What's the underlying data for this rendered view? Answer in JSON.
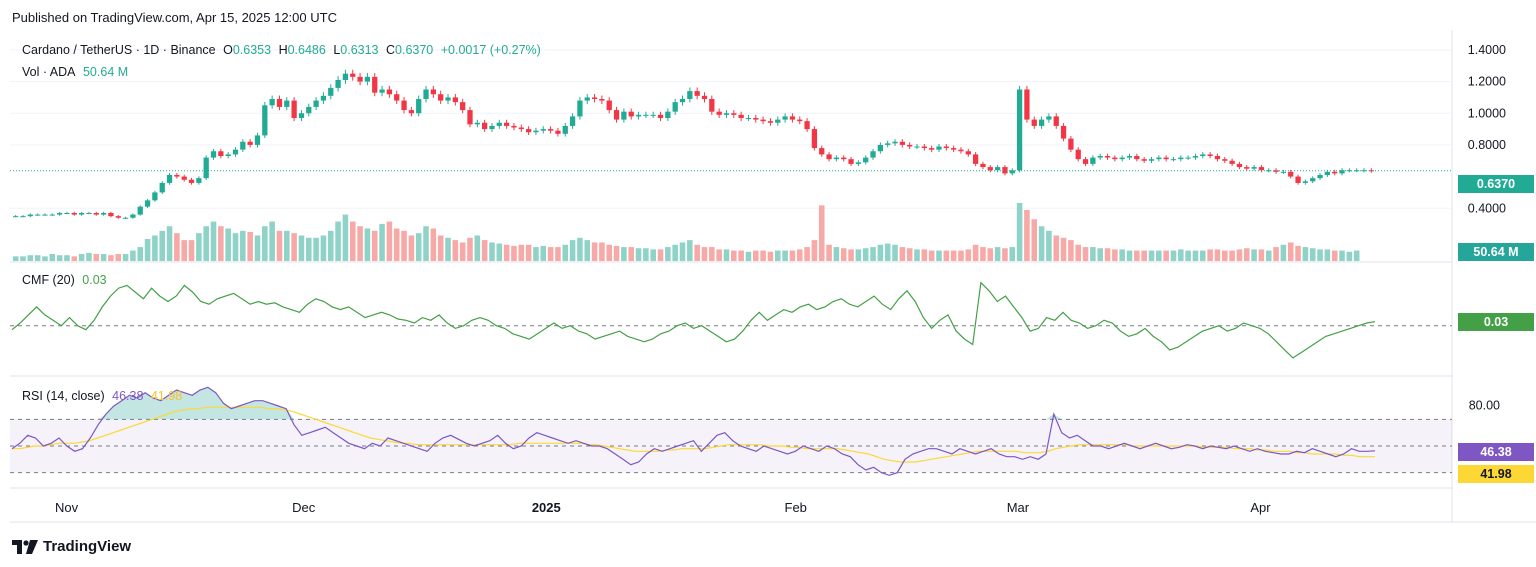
{
  "header": {
    "published": "Published on TradingView.com, Apr 15, 2025 12:00 UTC"
  },
  "footer": {
    "brand": "TradingView"
  },
  "colors": {
    "up": "#22ab94",
    "down": "#f23645",
    "up_vol": "#8fd3c8",
    "down_vol": "#f7a9a7",
    "cmf": "#43a047",
    "rsi": "#7e57c2",
    "rsi_ma": "#fdd835",
    "price_line": "#22ab94"
  },
  "chart_data": {
    "type": "candlestick",
    "symbol_line": {
      "title": "Cardano / TetherUS · 1D · Binance",
      "o_label": "O",
      "o": "0.6353",
      "h_label": "H",
      "h": "0.6486",
      "l_label": "L",
      "l": "0.6313",
      "c_label": "C",
      "c": "0.6370",
      "change": "+0.0017 (+0.27%)"
    },
    "volume_legend": {
      "label": "Vol · ADA",
      "value": "50.64 M"
    },
    "price_axis": {
      "ticks": [
        "1.4000",
        "1.2000",
        "1.0000",
        "0.8000",
        "0.4000"
      ],
      "range": [
        0.25,
        1.45
      ]
    },
    "last_price_label": "0.6370",
    "last_volume_label": "50.64 M",
    "time_axis": {
      "labels": [
        "Nov",
        "Dec",
        "2025",
        "Feb",
        "Mar",
        "Apr"
      ],
      "bold": "2025"
    },
    "close_series": [
      0.35,
      0.35,
      0.36,
      0.36,
      0.36,
      0.36,
      0.37,
      0.37,
      0.36,
      0.37,
      0.37,
      0.36,
      0.37,
      0.35,
      0.34,
      0.34,
      0.36,
      0.41,
      0.45,
      0.5,
      0.56,
      0.61,
      0.6,
      0.58,
      0.56,
      0.59,
      0.72,
      0.76,
      0.73,
      0.74,
      0.77,
      0.82,
      0.8,
      0.86,
      1.05,
      1.09,
      1.04,
      1.08,
      0.97,
      1.0,
      1.04,
      1.08,
      1.11,
      1.16,
      1.21,
      1.25,
      1.23,
      1.2,
      1.23,
      1.13,
      1.15,
      1.12,
      1.08,
      1.02,
      1.0,
      1.09,
      1.15,
      1.12,
      1.08,
      1.1,
      1.07,
      1.02,
      0.93,
      0.94,
      0.9,
      0.92,
      0.94,
      0.92,
      0.91,
      0.9,
      0.88,
      0.89,
      0.9,
      0.89,
      0.87,
      0.92,
      0.98,
      1.08,
      1.1,
      1.09,
      1.08,
      1.02,
      0.96,
      1.01,
      0.98,
      0.99,
      0.99,
      0.99,
      0.97,
      1.01,
      1.07,
      1.09,
      1.14,
      1.11,
      1.09,
      1.01,
      0.99,
      1.0,
      0.99,
      0.97,
      0.97,
      0.96,
      0.95,
      0.94,
      0.96,
      0.98,
      0.96,
      0.95,
      0.9,
      0.78,
      0.74,
      0.71,
      0.72,
      0.71,
      0.68,
      0.69,
      0.72,
      0.76,
      0.8,
      0.81,
      0.82,
      0.8,
      0.79,
      0.79,
      0.78,
      0.77,
      0.79,
      0.78,
      0.77,
      0.76,
      0.74,
      0.68,
      0.66,
      0.64,
      0.66,
      0.62,
      0.64,
      1.15,
      0.96,
      0.92,
      0.96,
      0.98,
      0.92,
      0.84,
      0.77,
      0.71,
      0.68,
      0.72,
      0.73,
      0.72,
      0.71,
      0.72,
      0.73,
      0.71,
      0.7,
      0.71,
      0.72,
      0.71,
      0.71,
      0.72,
      0.72,
      0.73,
      0.74,
      0.73,
      0.71,
      0.7,
      0.68,
      0.66,
      0.65,
      0.66,
      0.64,
      0.64,
      0.63,
      0.63,
      0.6,
      0.56,
      0.57,
      0.59,
      0.61,
      0.63,
      0.62,
      0.64,
      0.64,
      0.64,
      0.64,
      0.637
    ],
    "volume_series": [
      4,
      4,
      5,
      5,
      4,
      6,
      5,
      5,
      4,
      6,
      7,
      6,
      6,
      5,
      6,
      6,
      9,
      12,
      19,
      22,
      26,
      30,
      24,
      18,
      18,
      24,
      30,
      34,
      30,
      28,
      24,
      26,
      25,
      22,
      30,
      34,
      26,
      26,
      24,
      22,
      20,
      20,
      22,
      26,
      34,
      40,
      34,
      30,
      28,
      26,
      32,
      34,
      28,
      26,
      22,
      24,
      30,
      28,
      22,
      20,
      18,
      16,
      20,
      22,
      18,
      16,
      15,
      14,
      13,
      14,
      14,
      12,
      13,
      12,
      12,
      14,
      18,
      20,
      18,
      16,
      16,
      14,
      13,
      12,
      12,
      11,
      11,
      10,
      10,
      12,
      14,
      16,
      18,
      14,
      12,
      12,
      10,
      10,
      9,
      9,
      8,
      9,
      9,
      8,
      9,
      9,
      9,
      10,
      12,
      18,
      48,
      14,
      12,
      11,
      10,
      10,
      11,
      12,
      14,
      15,
      14,
      12,
      11,
      10,
      10,
      9,
      9,
      9,
      9,
      9,
      10,
      14,
      12,
      11,
      12,
      11,
      12,
      50,
      44,
      36,
      30,
      26,
      22,
      20,
      18,
      14,
      12,
      12,
      11,
      11,
      10,
      10,
      9,
      9,
      9,
      9,
      9,
      9,
      9,
      10,
      9,
      9,
      9,
      10,
      10,
      9,
      9,
      10,
      11,
      10,
      10,
      9,
      12,
      14,
      16,
      13,
      12,
      11,
      10,
      10,
      9,
      9,
      8,
      9
    ],
    "cmf": {
      "label": "CMF (20)",
      "value": "0.03",
      "label_box": "0.03",
      "series": [
        -0.03,
        0.02,
        0.08,
        0.14,
        0.08,
        0.04,
        0.0,
        0.06,
        0.0,
        -0.03,
        0.04,
        0.14,
        0.22,
        0.28,
        0.3,
        0.25,
        0.2,
        0.28,
        0.22,
        0.18,
        0.22,
        0.3,
        0.25,
        0.18,
        0.16,
        0.2,
        0.22,
        0.24,
        0.2,
        0.16,
        0.18,
        0.16,
        0.17,
        0.14,
        0.12,
        0.1,
        0.16,
        0.2,
        0.18,
        0.14,
        0.12,
        0.14,
        0.1,
        0.06,
        0.08,
        0.1,
        0.08,
        0.05,
        0.04,
        0.02,
        0.06,
        0.04,
        0.08,
        0.02,
        -0.02,
        0.0,
        0.04,
        0.06,
        0.04,
        0.0,
        -0.02,
        -0.06,
        -0.08,
        -0.1,
        -0.06,
        -0.02,
        0.02,
        -0.02,
        0.0,
        -0.04,
        -0.06,
        -0.1,
        -0.08,
        -0.06,
        -0.04,
        -0.08,
        -0.1,
        -0.12,
        -0.1,
        -0.06,
        -0.04,
        0.0,
        0.02,
        -0.02,
        0.0,
        -0.04,
        -0.08,
        -0.12,
        -0.1,
        -0.04,
        0.04,
        0.1,
        0.04,
        0.08,
        0.12,
        0.1,
        0.14,
        0.16,
        0.12,
        0.14,
        0.18,
        0.2,
        0.16,
        0.14,
        0.18,
        0.22,
        0.16,
        0.12,
        0.2,
        0.26,
        0.18,
        0.06,
        -0.02,
        0.04,
        0.08,
        -0.04,
        -0.1,
        -0.14,
        0.32,
        0.26,
        0.18,
        0.22,
        0.14,
        0.06,
        -0.04,
        -0.02,
        0.06,
        0.04,
        0.1,
        0.04,
        0.02,
        -0.02,
        0.0,
        0.04,
        0.02,
        -0.04,
        -0.08,
        -0.06,
        -0.02,
        -0.08,
        -0.12,
        -0.18,
        -0.16,
        -0.12,
        -0.08,
        -0.04,
        -0.02,
        0.0,
        -0.04,
        -0.02,
        0.02,
        0.0,
        -0.02,
        -0.06,
        -0.12,
        -0.18,
        -0.24,
        -0.2,
        -0.16,
        -0.12,
        -0.08,
        -0.06,
        -0.04,
        -0.02,
        0.0,
        0.02,
        0.03
      ]
    },
    "rsi": {
      "label": "RSI (14, close)",
      "value": "46.38",
      "ma_value": "41.98",
      "levels": {
        "top": "80.00"
      },
      "label_box": "46.38",
      "label_box_ma": "41.98",
      "series": [
        48,
        52,
        58,
        56,
        50,
        52,
        56,
        50,
        46,
        48,
        56,
        66,
        74,
        80,
        84,
        88,
        86,
        90,
        86,
        84,
        88,
        92,
        90,
        88,
        92,
        94,
        90,
        82,
        78,
        80,
        82,
        84,
        84,
        82,
        80,
        78,
        66,
        58,
        60,
        62,
        64,
        60,
        56,
        52,
        50,
        48,
        52,
        50,
        56,
        54,
        52,
        50,
        48,
        46,
        52,
        56,
        58,
        55,
        52,
        50,
        52,
        54,
        58,
        52,
        48,
        50,
        56,
        60,
        58,
        56,
        54,
        52,
        54,
        52,
        50,
        50,
        48,
        44,
        40,
        36,
        38,
        44,
        48,
        46,
        48,
        50,
        52,
        54,
        46,
        52,
        58,
        60,
        54,
        50,
        48,
        46,
        50,
        48,
        46,
        44,
        46,
        50,
        48,
        46,
        50,
        48,
        44,
        42,
        36,
        32,
        34,
        30,
        28,
        30,
        40,
        44,
        46,
        48,
        48,
        46,
        44,
        48,
        46,
        44,
        46,
        48,
        44,
        42,
        42,
        40,
        42,
        40,
        44,
        74,
        60,
        56,
        58,
        54,
        50,
        50,
        48,
        50,
        52,
        50,
        48,
        50,
        52,
        50,
        48,
        49,
        51,
        50,
        48,
        50,
        49,
        48,
        50,
        48,
        46,
        48,
        46,
        45,
        44,
        44,
        46,
        45,
        48,
        46,
        44,
        42,
        44,
        48,
        46,
        46,
        46.38
      ],
      "ma_series": [
        48,
        48,
        49,
        50,
        50,
        51,
        52,
        52,
        52,
        53,
        54,
        56,
        58,
        60,
        62,
        64,
        66,
        68,
        70,
        72,
        74,
        76,
        77,
        78,
        78,
        79,
        79,
        79,
        79,
        79,
        79,
        79,
        79,
        78,
        78,
        77,
        76,
        74,
        72,
        70,
        68,
        66,
        64,
        62,
        60,
        58,
        56,
        55,
        54,
        53,
        52,
        52,
        51,
        51,
        51,
        51,
        51,
        51,
        51,
        51,
        51,
        51,
        51,
        51,
        51,
        52,
        52,
        52,
        52,
        52,
        52,
        52,
        52,
        52,
        51,
        51,
        50,
        49,
        48,
        47,
        46,
        46,
        46,
        46,
        47,
        47,
        48,
        48,
        48,
        48,
        49,
        50,
        51,
        51,
        51,
        51,
        51,
        50,
        50,
        50,
        49,
        49,
        48,
        48,
        48,
        48,
        48,
        47,
        46,
        45,
        44,
        42,
        40,
        39,
        38,
        38,
        38,
        39,
        40,
        41,
        42,
        43,
        44,
        45,
        46,
        46,
        46,
        46,
        46,
        46,
        45,
        45,
        45,
        46,
        48,
        49,
        50,
        51,
        51,
        51,
        51,
        51,
        51,
        51,
        50,
        50,
        50,
        50,
        50,
        50,
        50,
        50,
        50,
        49,
        49,
        49,
        49,
        48,
        48,
        48,
        47,
        47,
        46,
        46,
        46,
        45,
        45,
        44,
        44,
        44,
        44,
        43,
        43,
        42,
        42,
        41.98
      ]
    }
  }
}
